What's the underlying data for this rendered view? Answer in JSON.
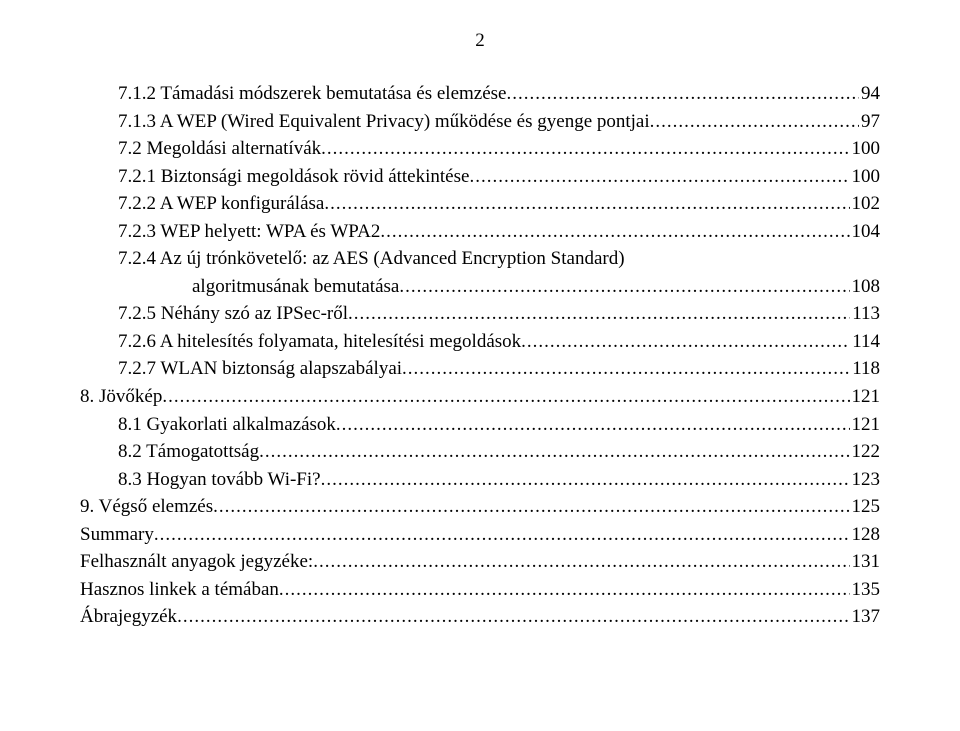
{
  "page_number": "2",
  "font_family": "Times New Roman",
  "font_size_pt": 14,
  "text_color": "#000000",
  "background_color": "#ffffff",
  "entries": [
    {
      "indent": "indent-1",
      "label": "7.1.2 Támadási módszerek bemutatása és elemzése",
      "page": "94",
      "continuation": false
    },
    {
      "indent": "indent-1",
      "label": "7.1.3 A WEP (Wired Equivalent Privacy) működése és gyenge pontjai",
      "page": "97",
      "continuation": false
    },
    {
      "indent": "indent-1b",
      "label": "7.2 Megoldási alternatívák",
      "page": "100",
      "continuation": false
    },
    {
      "indent": "indent-1",
      "label": "7.2.1 Biztonsági megoldások rövid áttekintése",
      "page": "100",
      "continuation": false
    },
    {
      "indent": "indent-1",
      "label": "7.2.2 A WEP konfigurálása",
      "page": "102",
      "continuation": false
    },
    {
      "indent": "indent-1",
      "label": "7.2.3 WEP helyett: WPA és WPA2",
      "page": "104",
      "continuation": false
    },
    {
      "indent": "indent-1",
      "label": "7.2.4 Az új trónkövetelő: az AES (Advanced Encryption Standard)",
      "page": "",
      "continuation": true
    },
    {
      "indent": "indent-cont",
      "label": "algoritmusának bemutatása",
      "page": "108",
      "continuation": false
    },
    {
      "indent": "indent-1",
      "label": "7.2.5 Néhány szó az IPSec-ről",
      "page": "113",
      "continuation": false
    },
    {
      "indent": "indent-1",
      "label": "7.2.6 A hitelesítés folyamata, hitelesítési megoldások",
      "page": "114",
      "continuation": false
    },
    {
      "indent": "indent-1",
      "label": "7.2.7 WLAN biztonság alapszabályai",
      "page": "118",
      "continuation": false
    },
    {
      "indent": "indent-0",
      "label": "8. Jövőkép",
      "page": "121",
      "continuation": false
    },
    {
      "indent": "indent-1b",
      "label": "8.1 Gyakorlati alkalmazások",
      "page": "121",
      "continuation": false
    },
    {
      "indent": "indent-1b",
      "label": "8.2 Támogatottság",
      "page": "122",
      "continuation": false
    },
    {
      "indent": "indent-1b",
      "label": "8.3 Hogyan tovább Wi-Fi?",
      "page": "123",
      "continuation": false
    },
    {
      "indent": "indent-0",
      "label": "9. Végső elemzés",
      "page": "125",
      "continuation": false
    },
    {
      "indent": "indent-0",
      "label": "Summary",
      "page": "128",
      "continuation": false
    },
    {
      "indent": "indent-0",
      "label": "Felhasznált anyagok jegyzéke:",
      "page": "131",
      "continuation": false
    },
    {
      "indent": "indent-0",
      "label": "Hasznos linkek a témában",
      "page": "135",
      "continuation": false
    },
    {
      "indent": "indent-0",
      "label": "Ábrajegyzék",
      "page": "137",
      "continuation": false
    }
  ]
}
